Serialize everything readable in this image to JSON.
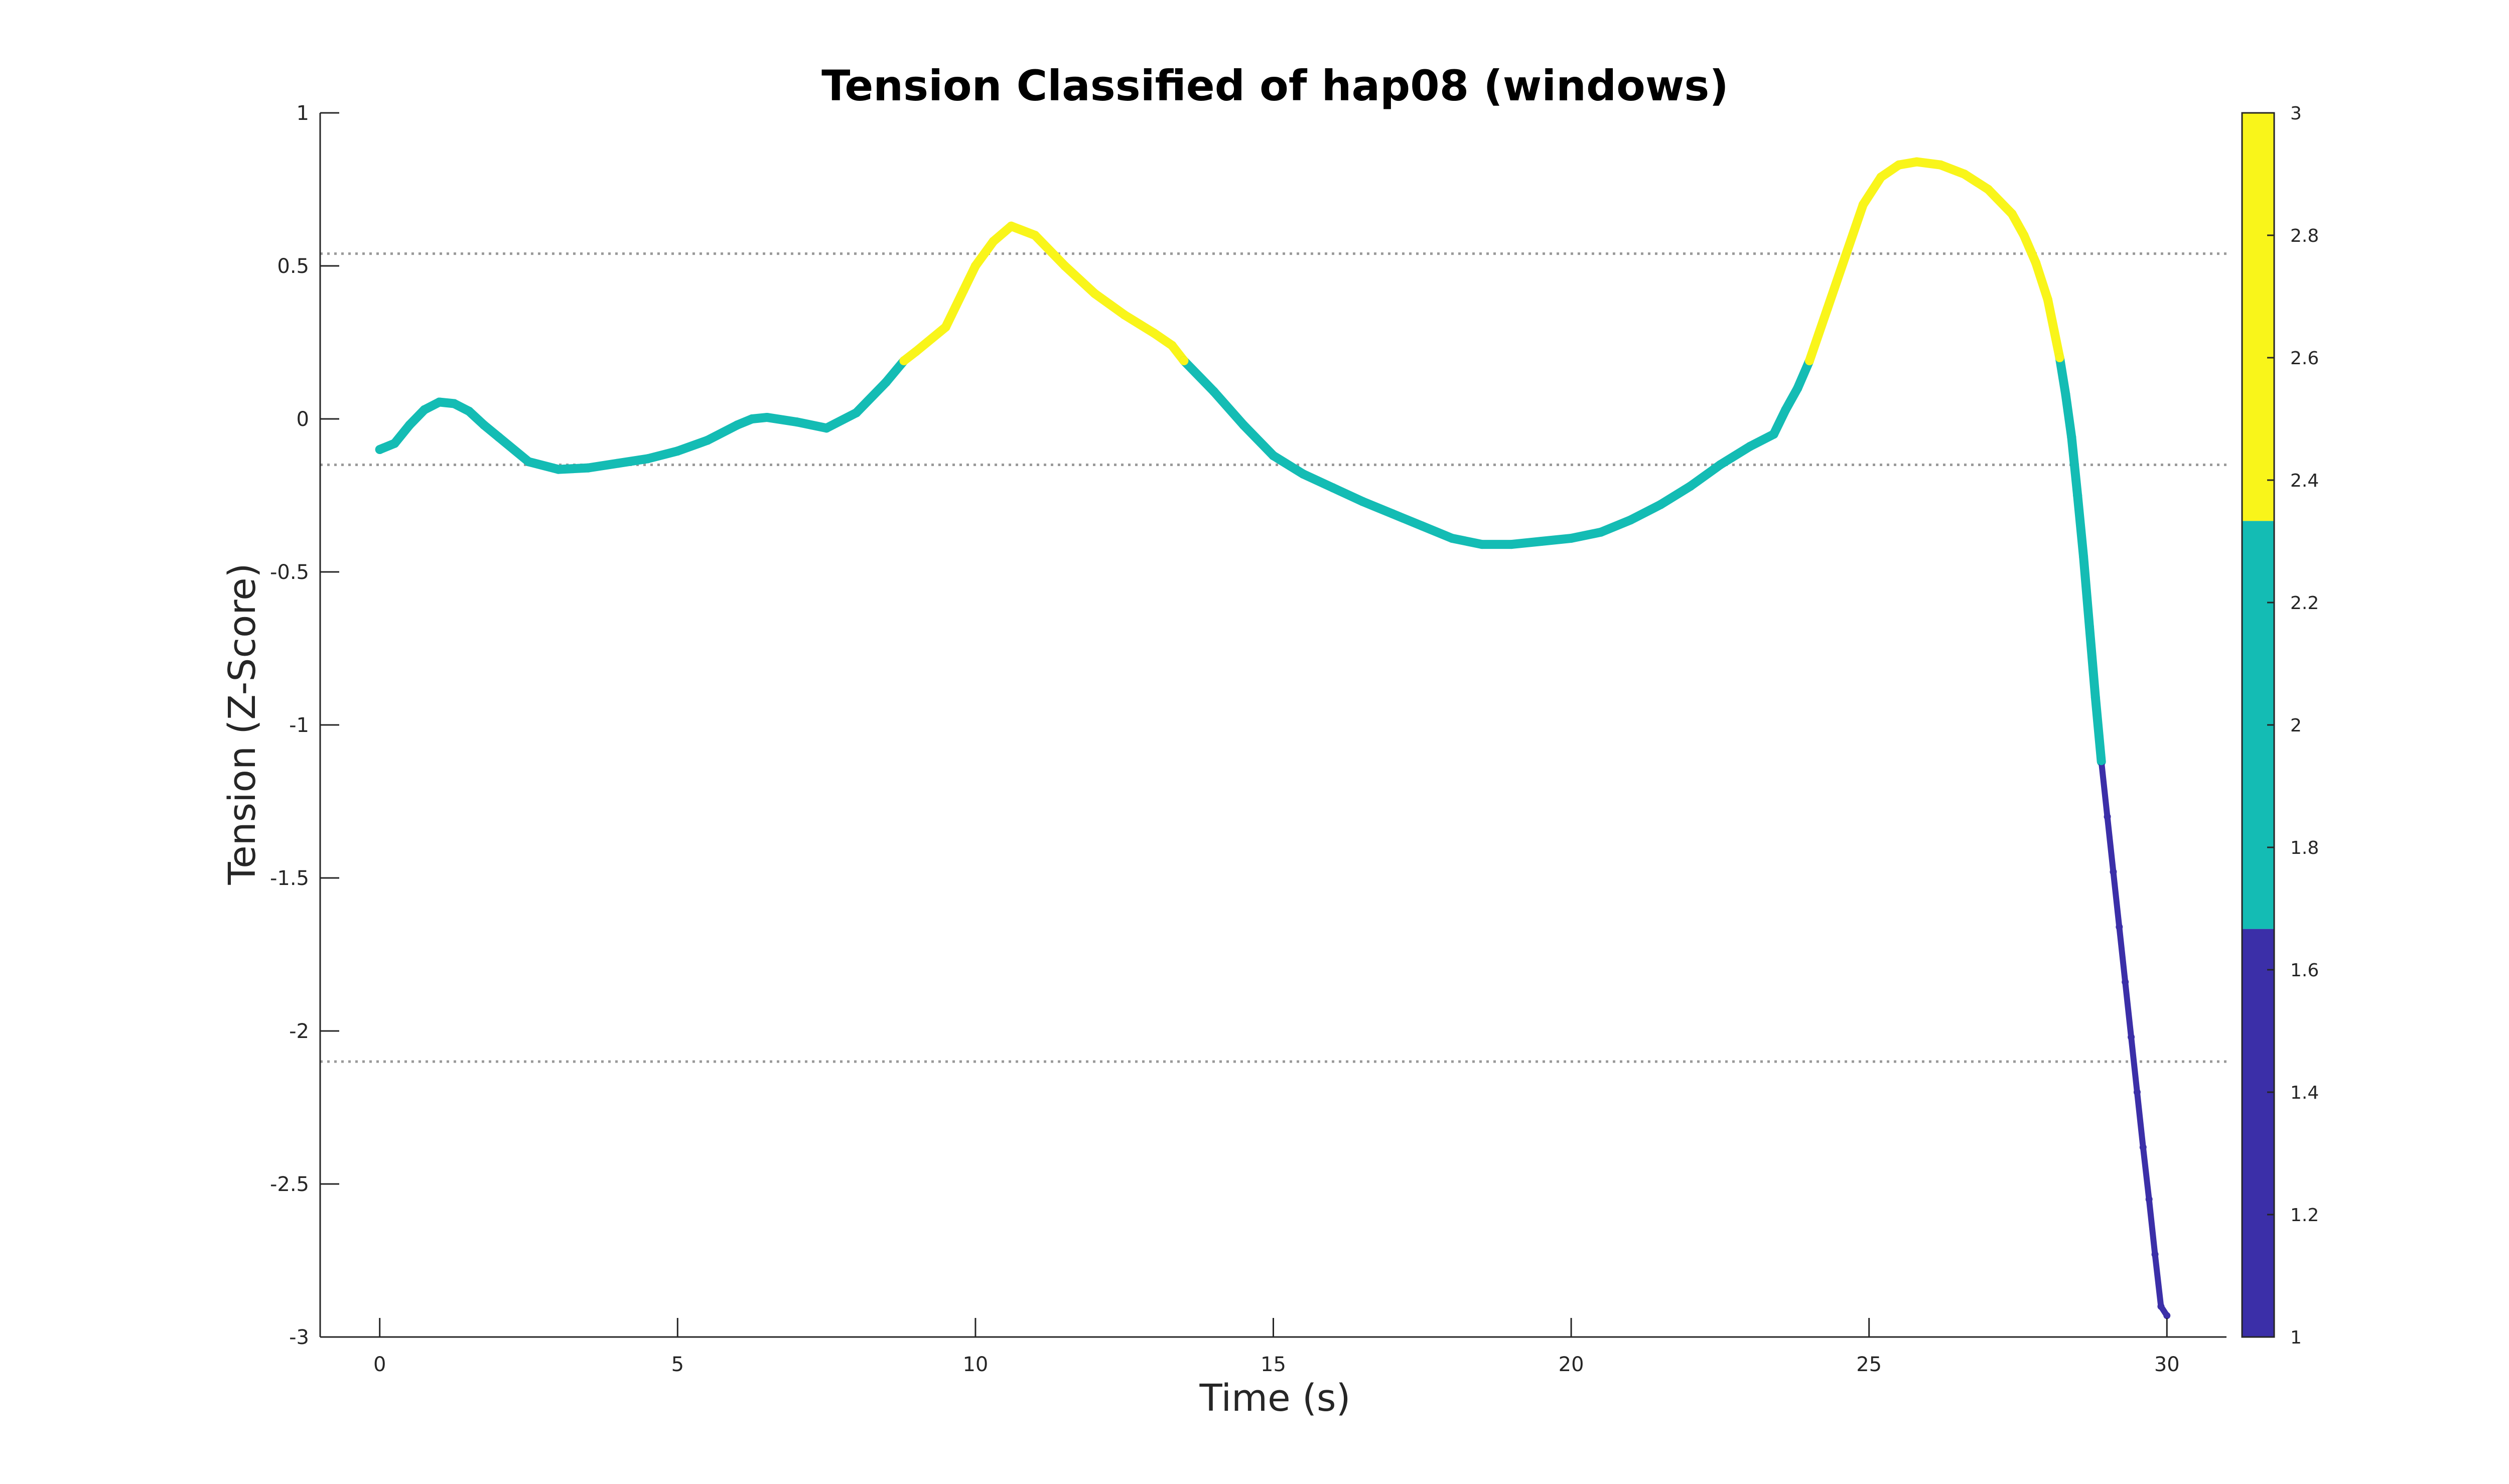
{
  "chart_data": {
    "type": "line",
    "title": "Tension Classified of hap08 (windows)",
    "xlabel": "Time (s)",
    "ylabel": "Tension (Z-Score)",
    "xlim": [
      -1,
      31
    ],
    "ylim": [
      -3,
      1
    ],
    "xticks": [
      0,
      5,
      10,
      15,
      20,
      25,
      30
    ],
    "yticks": [
      -3,
      -2.5,
      -2,
      -1.5,
      -1,
      -0.5,
      0,
      0.5,
      1
    ],
    "xtick_labels": [
      "0",
      "5",
      "10",
      "15",
      "20",
      "25",
      "30"
    ],
    "ytick_labels": [
      "-3",
      "-2.5",
      "-2",
      "-1.5",
      "-1",
      "-0.5",
      "0",
      "0.5",
      "1"
    ],
    "threshold_lines": [
      0.54,
      -0.15,
      -2.1
    ],
    "series": [
      {
        "name": "tension",
        "x": [
          0,
          0.25,
          0.5,
          0.75,
          1.0,
          1.25,
          1.5,
          1.75,
          2.0,
          2.5,
          3.0,
          3.5,
          4.0,
          4.5,
          5.0,
          5.5,
          6.0,
          6.25,
          6.5,
          7.0,
          7.5,
          8.0,
          8.5,
          8.8,
          9.0,
          9.5,
          9.8,
          10.0,
          10.3,
          10.6,
          11.0,
          11.5,
          12.0,
          12.5,
          13.0,
          13.3,
          13.5,
          14.0,
          14.5,
          15.0,
          15.5,
          16.0,
          16.5,
          17.0,
          17.5,
          18.0,
          18.5,
          19.0,
          19.5,
          20.0,
          20.5,
          21.0,
          21.5,
          22.0,
          22.5,
          23.0,
          23.4,
          23.6,
          23.8,
          24.0,
          24.3,
          24.6,
          24.9,
          25.2,
          25.5,
          25.8,
          26.2,
          26.6,
          27.0,
          27.4,
          27.6,
          27.8,
          28.0,
          28.2,
          28.3,
          28.4,
          28.5,
          28.6,
          28.7,
          28.8,
          28.9,
          29.0,
          29.1,
          29.2,
          29.3,
          29.4,
          29.5,
          29.6,
          29.7,
          29.8,
          29.9,
          30.0
        ],
        "y": [
          -0.1,
          -0.08,
          -0.02,
          0.03,
          0.055,
          0.05,
          0.025,
          -0.02,
          -0.06,
          -0.14,
          -0.165,
          -0.16,
          -0.145,
          -0.13,
          -0.105,
          -0.07,
          -0.02,
          0.0,
          0.005,
          -0.01,
          -0.03,
          0.02,
          0.12,
          0.19,
          0.22,
          0.3,
          0.42,
          0.5,
          0.58,
          0.63,
          0.6,
          0.5,
          0.41,
          0.34,
          0.28,
          0.24,
          0.19,
          0.09,
          -0.02,
          -0.12,
          -0.18,
          -0.225,
          -0.27,
          -0.31,
          -0.35,
          -0.39,
          -0.41,
          -0.41,
          -0.4,
          -0.39,
          -0.37,
          -0.33,
          -0.28,
          -0.22,
          -0.15,
          -0.09,
          -0.05,
          0.03,
          0.1,
          0.19,
          0.36,
          0.53,
          0.7,
          0.79,
          0.83,
          0.84,
          0.83,
          0.8,
          0.75,
          0.67,
          0.6,
          0.51,
          0.39,
          0.2,
          0.08,
          -0.06,
          -0.25,
          -0.45,
          -0.68,
          -0.91,
          -1.12,
          -1.3,
          -1.48,
          -1.66,
          -1.84,
          -2.02,
          -2.2,
          -2.38,
          -2.55,
          -2.73,
          -2.9,
          -2.93
        ]
      }
    ],
    "color_classes": [
      {
        "class": 1,
        "range": [
          -100,
          -1.12
        ],
        "color": "#3b2fa8"
      },
      {
        "class": 2,
        "range": [
          -1.12,
          0.19
        ],
        "color": "#14bcb4"
      },
      {
        "class": 3,
        "range": [
          0.19,
          100
        ],
        "color": "#f9f51a"
      }
    ],
    "colorbar": {
      "lim": [
        1,
        3
      ],
      "ticks": [
        1,
        1.2,
        1.4,
        1.6,
        1.8,
        2,
        2.2,
        2.4,
        2.6,
        2.8,
        3
      ],
      "tick_labels": [
        "1",
        "1.2",
        "1.4",
        "1.6",
        "1.8",
        "2",
        "2.2",
        "2.4",
        "2.6",
        "2.8",
        "3"
      ],
      "bands": [
        {
          "from": 1,
          "to": 1.6667,
          "color": "#3b2fa8"
        },
        {
          "from": 1.6667,
          "to": 2.3333,
          "color": "#14bcb4"
        },
        {
          "from": 2.3333,
          "to": 3,
          "color": "#f9f51a"
        }
      ]
    }
  }
}
